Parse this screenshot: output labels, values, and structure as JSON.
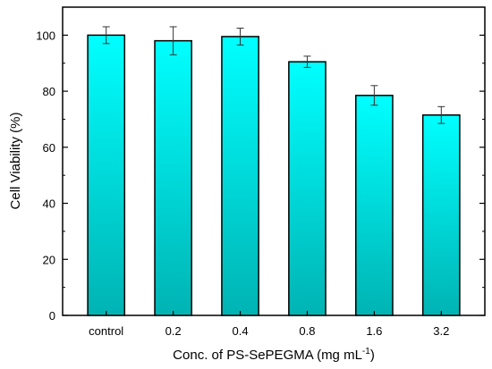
{
  "chart_data": {
    "type": "bar",
    "categories": [
      "control",
      "0.2",
      "0.4",
      "0.8",
      "1.6",
      "3.2"
    ],
    "values": [
      100,
      98,
      99.5,
      90.5,
      78.5,
      71.5
    ],
    "errors": [
      3,
      5,
      3,
      2,
      3.5,
      3
    ],
    "xlabel_main": "Conc. of PS-SePEGMA (mg mL",
    "xlabel_sup": "-1",
    "xlabel_end": ")",
    "ylabel": "Cell Viability (%)",
    "ylim": [
      0,
      110
    ],
    "yticks": [
      0,
      20,
      40,
      60,
      80,
      100
    ],
    "grid": false,
    "bar_color_top": "#00ffff",
    "bar_color_bottom": "#00b3b3",
    "bar_edge": "#000000"
  }
}
